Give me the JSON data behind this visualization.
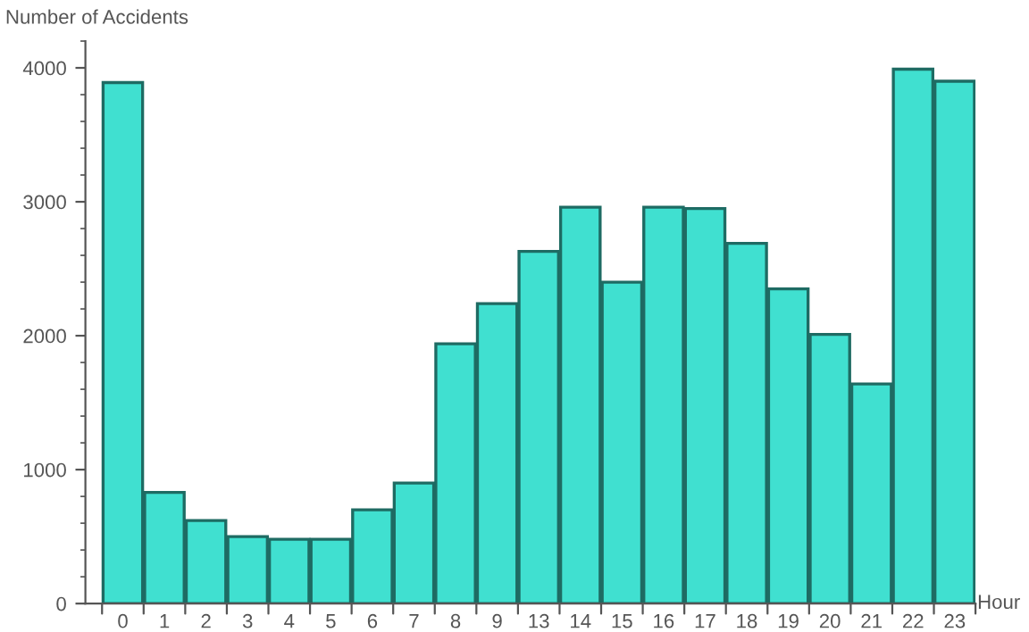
{
  "chart_data": {
    "type": "bar",
    "xlabel": "Hour",
    "ylabel": "Number of Accidents",
    "categories": [
      "0",
      "1",
      "2",
      "3",
      "4",
      "5",
      "6",
      "7",
      "8",
      "9",
      "13",
      "14",
      "15",
      "16",
      "17",
      "18",
      "19",
      "20",
      "21",
      "22",
      "23"
    ],
    "values": [
      3890,
      830,
      620,
      500,
      480,
      480,
      700,
      900,
      1940,
      2240,
      2630,
      2960,
      2400,
      2960,
      2950,
      2690,
      2350,
      2010,
      1640,
      3990,
      3900
    ],
    "color": "#40e0d0",
    "ylim": [
      0,
      4200
    ],
    "yticks": [
      0,
      1000,
      2000,
      3000,
      4000
    ],
    "grid": false,
    "legend": false
  }
}
